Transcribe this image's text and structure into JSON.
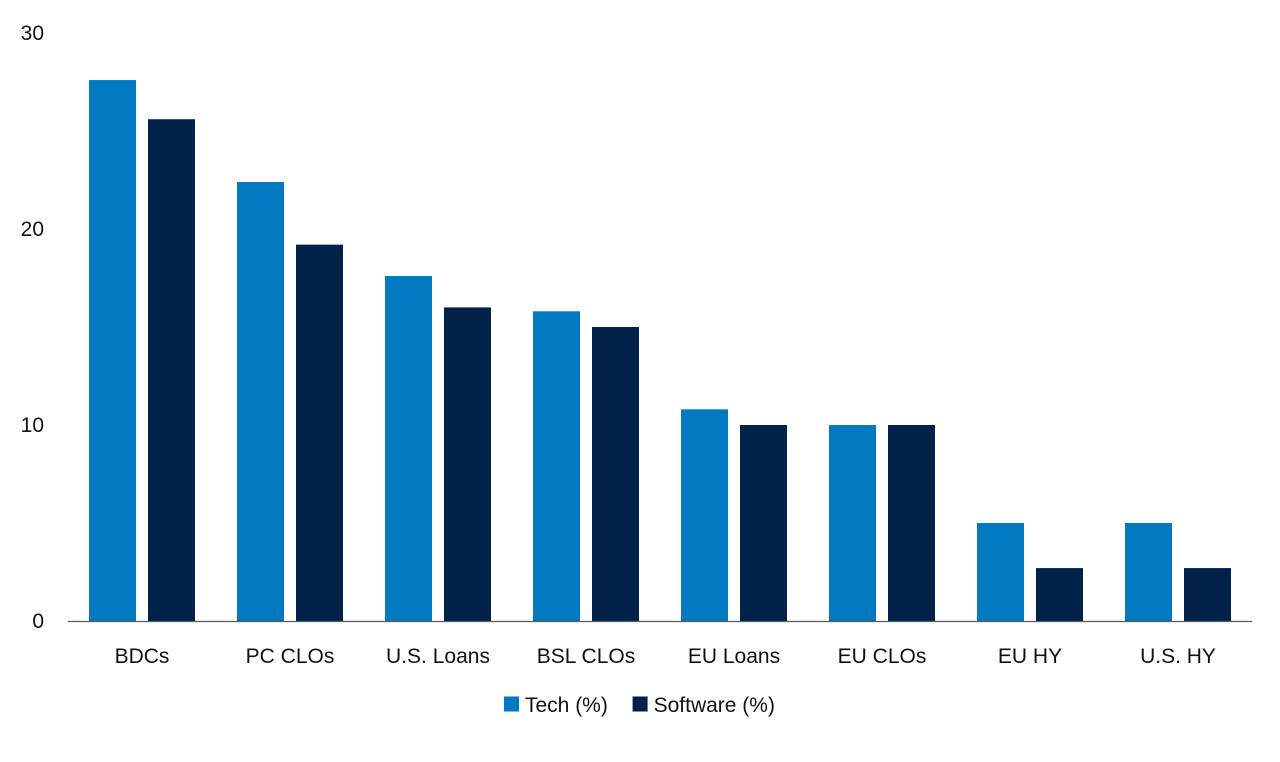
{
  "chart_data": {
    "type": "bar",
    "categories": [
      "BDCs",
      "PC CLOs",
      "U.S. Loans",
      "BSL CLOs",
      "EU Loans",
      "EU CLOs",
      "EU HY",
      "U.S. HY"
    ],
    "series": [
      {
        "name": "Tech (%)",
        "color": "#0079C1",
        "values": [
          27.6,
          22.4,
          17.6,
          15.8,
          10.8,
          10.0,
          5.0,
          5.0
        ]
      },
      {
        "name": "Software (%)",
        "color": "#00214A",
        "values": [
          25.6,
          19.2,
          16.0,
          15.0,
          10.0,
          10.0,
          2.7,
          2.7
        ]
      }
    ],
    "yticks": [
      0,
      10,
      20,
      30
    ],
    "ylim": [
      0,
      30
    ],
    "grid": false,
    "legend_position": "bottom-center"
  }
}
